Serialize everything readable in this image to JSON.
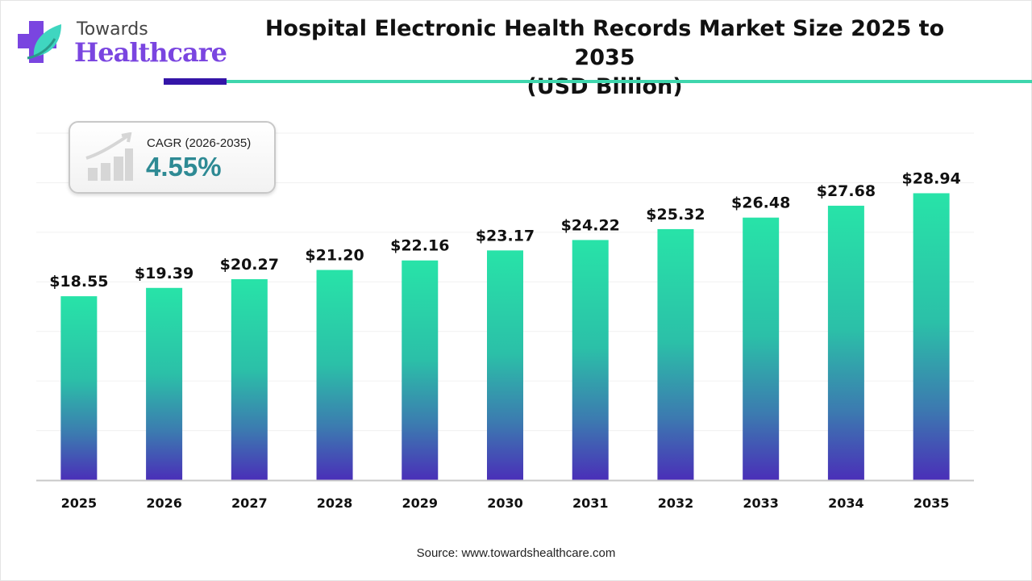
{
  "brand": {
    "line1": "Towards",
    "line2": "Healthcare",
    "accent_purple": "#7a45e0",
    "accent_teal": "#3fd6ad"
  },
  "cagr": {
    "label": "CAGR (2026-2035)",
    "value": "4.55%",
    "icon": "growth-chart-icon"
  },
  "source": "Source: www.towardshealthcare.com",
  "chart_data": {
    "type": "bar",
    "title": "Hospital Electronic Health Records Market Size 2025 to 2035 (USD Billion)",
    "title_line1": "Hospital Electronic Health Records Market Size 2025 to 2035",
    "title_line2": "(USD Billion)",
    "categories": [
      "2025",
      "2026",
      "2027",
      "2028",
      "2029",
      "2030",
      "2031",
      "2032",
      "2033",
      "2034",
      "2035"
    ],
    "values": [
      18.55,
      19.39,
      20.27,
      21.2,
      22.16,
      23.17,
      24.22,
      25.32,
      26.48,
      27.68,
      28.94
    ],
    "data_labels": [
      "$18.55",
      "$19.39",
      "$20.27",
      "$21.20",
      "$22.16",
      "$23.17",
      "$24.22",
      "$25.32",
      "$26.48",
      "$27.68",
      "$28.94"
    ],
    "ylim": [
      0,
      35
    ],
    "grid": true,
    "bar_gradient": {
      "top": "#28e3a8",
      "bottom": "#4a2fb8"
    }
  }
}
